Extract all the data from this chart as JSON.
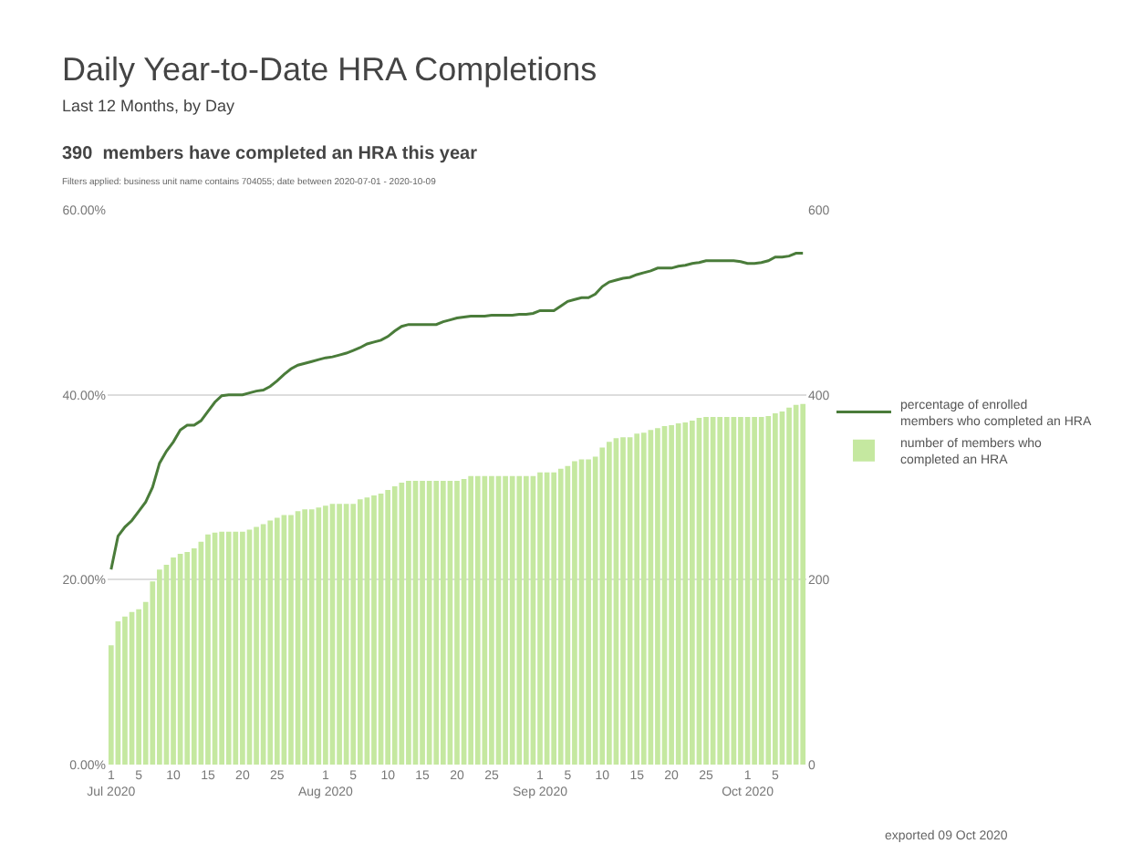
{
  "chart_data": {
    "type": "bar",
    "title": "Daily Year-to-Date HRA Completions",
    "subtitle": "Last 12 Months, by Day",
    "annotations": [
      "390  members have completed an HRA this year",
      "Filters applied: business unit name contains 704055; date between 2020-07-01 - 2020-10-09",
      "exported 09 Oct 2020"
    ],
    "x": [
      "2020-07-01",
      "2020-07-02",
      "2020-07-03",
      "2020-07-04",
      "2020-07-05",
      "2020-07-06",
      "2020-07-07",
      "2020-07-08",
      "2020-07-09",
      "2020-07-10",
      "2020-07-11",
      "2020-07-12",
      "2020-07-13",
      "2020-07-14",
      "2020-07-15",
      "2020-07-16",
      "2020-07-17",
      "2020-07-18",
      "2020-07-19",
      "2020-07-20",
      "2020-07-21",
      "2020-07-22",
      "2020-07-23",
      "2020-07-24",
      "2020-07-25",
      "2020-07-26",
      "2020-07-27",
      "2020-07-28",
      "2020-07-29",
      "2020-07-30",
      "2020-07-31",
      "2020-08-01",
      "2020-08-02",
      "2020-08-03",
      "2020-08-04",
      "2020-08-05",
      "2020-08-06",
      "2020-08-07",
      "2020-08-08",
      "2020-08-09",
      "2020-08-10",
      "2020-08-11",
      "2020-08-12",
      "2020-08-13",
      "2020-08-14",
      "2020-08-15",
      "2020-08-16",
      "2020-08-17",
      "2020-08-18",
      "2020-08-19",
      "2020-08-20",
      "2020-08-21",
      "2020-08-22",
      "2020-08-23",
      "2020-08-24",
      "2020-08-25",
      "2020-08-26",
      "2020-08-27",
      "2020-08-28",
      "2020-08-29",
      "2020-08-30",
      "2020-08-31",
      "2020-09-01",
      "2020-09-02",
      "2020-09-03",
      "2020-09-04",
      "2020-09-05",
      "2020-09-06",
      "2020-09-07",
      "2020-09-08",
      "2020-09-09",
      "2020-09-10",
      "2020-09-11",
      "2020-09-12",
      "2020-09-13",
      "2020-09-14",
      "2020-09-15",
      "2020-09-16",
      "2020-09-17",
      "2020-09-18",
      "2020-09-19",
      "2020-09-20",
      "2020-09-21",
      "2020-09-22",
      "2020-09-23",
      "2020-09-24",
      "2020-09-25",
      "2020-09-26",
      "2020-09-27",
      "2020-09-28",
      "2020-09-29",
      "2020-09-30",
      "2020-10-01",
      "2020-10-02",
      "2020-10-03",
      "2020-10-04",
      "2020-10-05",
      "2020-10-06",
      "2020-10-07",
      "2020-10-08",
      "2020-10-09"
    ],
    "series": [
      {
        "name": "percentage of enrolled members who completed an HRA",
        "type": "line",
        "axis": "y",
        "color": "#4a7c3a",
        "values": [
          21.1,
          24.7,
          25.7,
          26.4,
          27.4,
          28.4,
          30,
          32.6,
          33.9,
          34.9,
          36.2,
          36.7,
          36.7,
          37.2,
          38.2,
          39.2,
          39.9,
          40,
          40,
          40,
          40.2,
          40.4,
          40.5,
          40.9,
          41.5,
          42.2,
          42.8,
          43.2,
          43.4,
          43.6,
          43.8,
          44,
          44.1,
          44.3,
          44.5,
          44.8,
          45.1,
          45.5,
          45.7,
          45.9,
          46.3,
          46.9,
          47.4,
          47.6,
          47.6,
          47.6,
          47.6,
          47.6,
          47.9,
          48.1,
          48.3,
          48.4,
          48.5,
          48.5,
          48.5,
          48.6,
          48.6,
          48.6,
          48.6,
          48.7,
          48.7,
          48.8,
          49.1,
          49.1,
          49.1,
          49.6,
          50.1,
          50.3,
          50.5,
          50.5,
          50.9,
          51.7,
          52.2,
          52.4,
          52.6,
          52.7,
          53,
          53.2,
          53.4,
          53.7,
          53.7,
          53.7,
          53.9,
          54,
          54.2,
          54.3,
          54.5,
          54.5,
          54.5,
          54.5,
          54.5,
          54.4,
          54.2,
          54.2,
          54.3,
          54.5,
          54.9,
          54.9,
          55,
          55.3,
          55.3
        ]
      },
      {
        "name": "number of members who completed an HRA",
        "axis": "y2",
        "color": "#c5e8a0",
        "values": [
          129,
          155,
          160,
          165,
          168,
          176,
          198,
          211,
          216,
          224,
          228,
          230,
          234,
          241,
          249,
          251,
          252,
          252,
          252,
          252,
          254,
          257,
          260,
          264,
          267,
          270,
          270,
          274,
          276,
          276,
          278,
          280,
          282,
          282,
          282,
          282,
          287,
          289,
          291,
          293,
          297,
          301,
          305,
          307,
          307,
          307,
          307,
          307,
          307,
          307,
          307,
          309,
          312,
          312,
          312,
          312,
          312,
          312,
          312,
          312,
          312,
          312,
          316,
          316,
          316,
          320,
          323,
          328,
          330,
          330,
          333,
          343,
          349,
          353,
          354,
          354,
          358,
          359,
          362,
          364,
          366,
          367,
          369,
          370,
          372,
          375,
          376,
          376,
          376,
          376,
          376,
          376,
          376,
          376,
          376,
          377,
          380,
          382,
          386,
          389,
          390
        ]
      }
    ],
    "xlim": [
      "2020-06-30T12:00",
      "2020-10-09T12:00"
    ],
    "xticks": [
      {
        "value": "2020-07-01",
        "label": "1\nJul 2020"
      },
      {
        "value": "2020-07-05",
        "label": "5"
      },
      {
        "value": "2020-07-10",
        "label": "10"
      },
      {
        "value": "2020-07-15",
        "label": "15"
      },
      {
        "value": "2020-07-20",
        "label": "20"
      },
      {
        "value": "2020-07-25",
        "label": "25"
      },
      {
        "value": "2020-08-01",
        "label": "1\nAug 2020"
      },
      {
        "value": "2020-08-05",
        "label": "5"
      },
      {
        "value": "2020-08-10",
        "label": "10"
      },
      {
        "value": "2020-08-15",
        "label": "15"
      },
      {
        "value": "2020-08-20",
        "label": "20"
      },
      {
        "value": "2020-08-25",
        "label": "25"
      },
      {
        "value": "2020-09-01",
        "label": "1\nSep 2020"
      },
      {
        "value": "2020-09-05",
        "label": "5"
      },
      {
        "value": "2020-09-10",
        "label": "10"
      },
      {
        "value": "2020-09-15",
        "label": "15"
      },
      {
        "value": "2020-09-20",
        "label": "20"
      },
      {
        "value": "2020-09-25",
        "label": "25"
      },
      {
        "value": "2020-10-01",
        "label": "1\nOct 2020"
      },
      {
        "value": "2020-10-05",
        "label": "5"
      }
    ],
    "ylim": [
      0,
      60
    ],
    "yticks": [
      {
        "value": 0,
        "label": "0.00%"
      },
      {
        "value": 20,
        "label": "20.00%"
      },
      {
        "value": 40,
        "label": "40.00%"
      },
      {
        "value": 60,
        "label": "60.00%"
      }
    ],
    "y2lim": [
      0,
      600
    ],
    "y2ticks": [
      0,
      200,
      400,
      600
    ],
    "grid": "y",
    "legend": "right"
  }
}
